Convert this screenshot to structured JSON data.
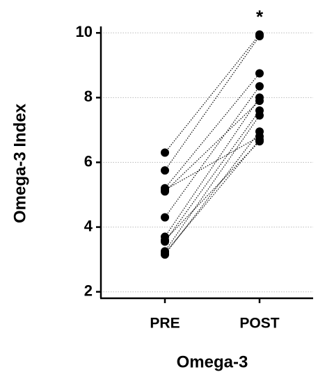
{
  "chart_data": {
    "type": "paired_dot",
    "y_label": "Omega-3 Index",
    "x_label": "Omega-3",
    "annotation": "*",
    "categories": [
      "PRE",
      "POST"
    ],
    "color": "#000000",
    "series": [
      {
        "values": [
          6.3,
          9.95
        ]
      },
      {
        "values": [
          5.75,
          9.9
        ]
      },
      {
        "values": [
          5.2,
          8.75
        ]
      },
      {
        "values": [
          5.1,
          7.9
        ]
      },
      {
        "values": [
          5.15,
          6.8
        ]
      },
      {
        "values": [
          4.3,
          8.35
        ]
      },
      {
        "values": [
          3.7,
          8.0
        ]
      },
      {
        "values": [
          3.55,
          7.6
        ]
      },
      {
        "values": [
          3.6,
          6.65
        ]
      },
      {
        "values": [
          3.25,
          7.45
        ]
      },
      {
        "values": [
          3.15,
          6.95
        ]
      },
      {
        "values": [
          3.2,
          6.7
        ]
      }
    ],
    "ylim": [
      1.8,
      10.2
    ],
    "yticks": [
      2,
      4,
      6,
      8,
      10
    ],
    "grid": true
  }
}
